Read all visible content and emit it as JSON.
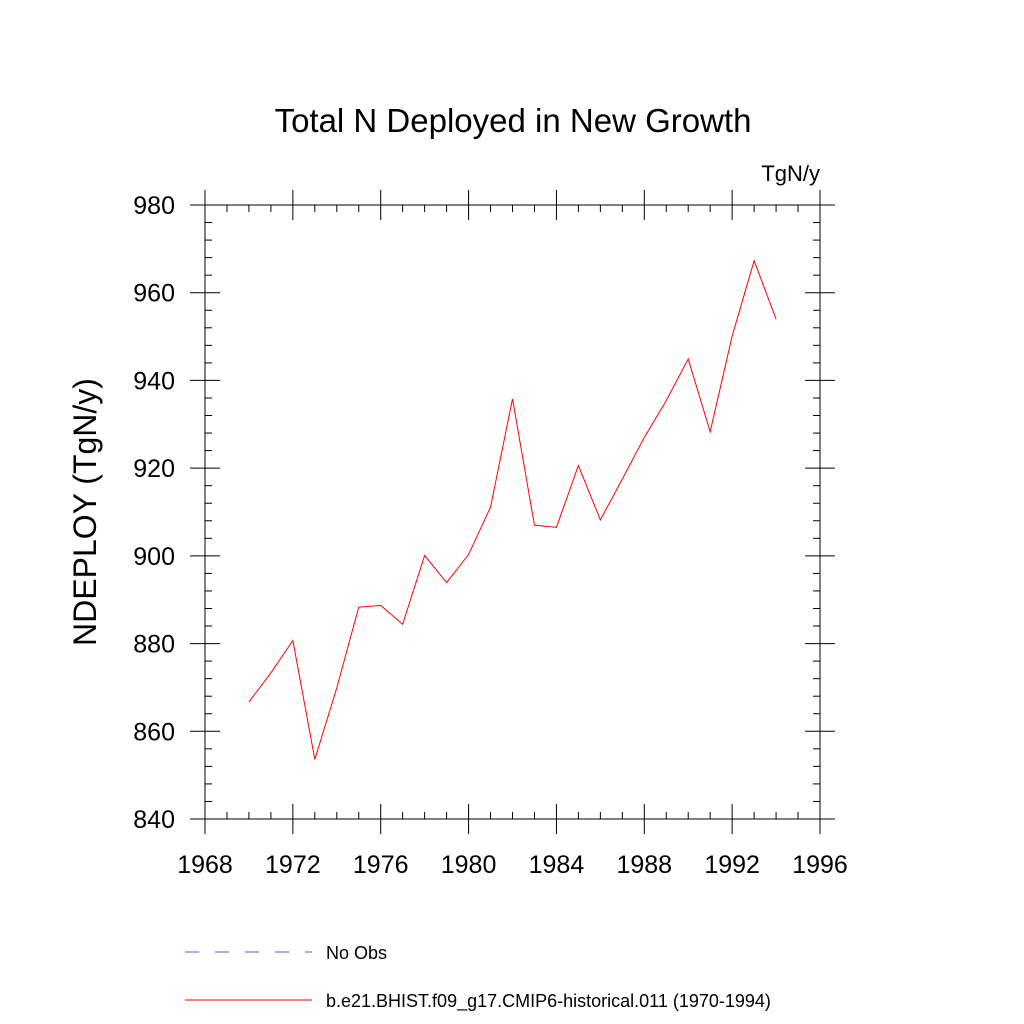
{
  "chart_data": {
    "type": "line",
    "title": "Total N Deployed in New Growth",
    "units_label": "TgN/y",
    "xlabel": "",
    "ylabel": "NDEPLOY  (TgN/y)",
    "xlim": [
      1968,
      1996
    ],
    "ylim": [
      840,
      980
    ],
    "x_ticks": [
      1968,
      1972,
      1976,
      1980,
      1984,
      1988,
      1992,
      1996
    ],
    "x_tick_labels": [
      "1968",
      "1972",
      "1976",
      "1980",
      "1984",
      "1988",
      "1992",
      "1996"
    ],
    "y_ticks": [
      840,
      860,
      880,
      900,
      920,
      940,
      960,
      980
    ],
    "y_tick_labels": [
      "840",
      "860",
      "880",
      "900",
      "920",
      "940",
      "960",
      "980"
    ],
    "grid": false,
    "legend_position": "bottom",
    "series": [
      {
        "name": "No Obs",
        "color": "#5555cc",
        "style": "dashed",
        "x": [],
        "values": []
      },
      {
        "name": "b.e21.BHIST.f09_g17.CMIP6-historical.011 (1970-1994)",
        "color": "#ff0000",
        "style": "solid",
        "x": [
          1970,
          1971,
          1972,
          1973,
          1974,
          1975,
          1976,
          1977,
          1978,
          1979,
          1980,
          1981,
          1982,
          1983,
          1984,
          1985,
          1986,
          1987,
          1988,
          1989,
          1990,
          1991,
          1992,
          1993,
          1994
        ],
        "values": [
          866.7,
          873.3,
          880.7,
          853.6,
          869.9,
          888.3,
          888.7,
          884.4,
          900.1,
          893.9,
          900.3,
          911.1,
          935.8,
          907.0,
          906.5,
          920.6,
          908.2,
          917.5,
          927.0,
          935.4,
          944.9,
          928.3,
          950.1,
          967.3,
          954.0
        ]
      }
    ]
  }
}
